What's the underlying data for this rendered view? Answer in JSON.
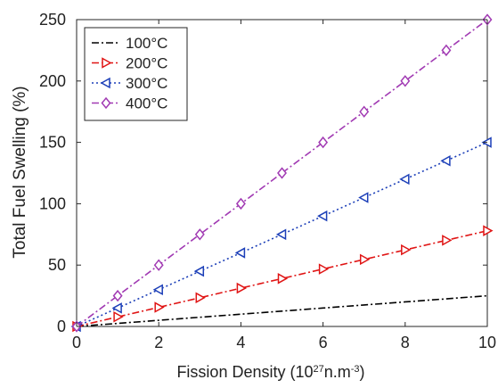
{
  "chart_data": {
    "type": "line",
    "title": "",
    "xlabel": "Fission Density (10",
    "xlabel_exp1": "27",
    "xlabel_mid": "n.m",
    "xlabel_exp2": "-3",
    "xlabel_end": ")",
    "ylabel": "Total Fuel Swelling (%)",
    "xlim": [
      0,
      10
    ],
    "ylim": [
      0,
      250
    ],
    "xticks": [
      0,
      2,
      4,
      6,
      8,
      10
    ],
    "yticks": [
      0,
      50,
      100,
      150,
      200,
      250
    ],
    "grid": false,
    "legend_position": "top-left",
    "x": [
      0,
      1,
      2,
      3,
      4,
      5,
      6,
      7,
      8,
      9,
      10
    ],
    "series": [
      {
        "name": "100°C",
        "color": "#000000",
        "line_style": "dash-dot",
        "marker": "none",
        "values": [
          0,
          2.5,
          5,
          7.5,
          10,
          12.5,
          15,
          17.5,
          20,
          22.5,
          25
        ]
      },
      {
        "name": "200°C",
        "color": "#e01515",
        "line_style": "dash-dot",
        "marker": "triangle-right",
        "values": [
          0,
          7.8,
          15.6,
          23.4,
          31.2,
          39,
          46.8,
          54.6,
          62.4,
          70.2,
          78
        ]
      },
      {
        "name": "300°C",
        "color": "#1c3fb8",
        "line_style": "dotted",
        "marker": "triangle-left",
        "values": [
          0,
          15,
          30,
          45,
          60,
          75,
          90,
          105,
          120,
          135,
          150
        ]
      },
      {
        "name": "400°C",
        "color": "#a13ab3",
        "line_style": "dash-dot",
        "marker": "diamond",
        "values": [
          0,
          25,
          50,
          75,
          100,
          125,
          150,
          175,
          200,
          225,
          250
        ]
      }
    ]
  }
}
